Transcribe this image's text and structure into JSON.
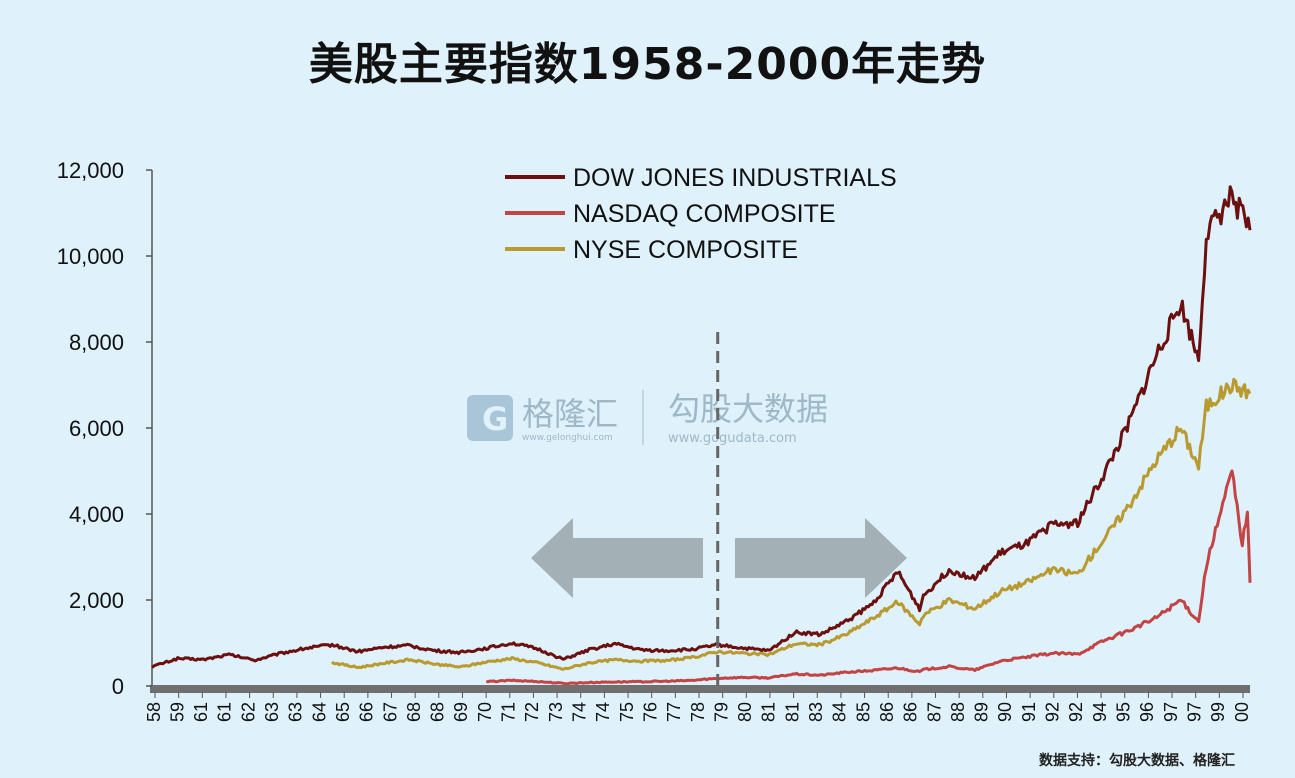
{
  "title": "美股主要指数1958-2000年走势",
  "watermark": {
    "brand1": "格隆汇",
    "brand1_url": "www.gelonghui.com",
    "brand2": "勾股大数据",
    "brand2_url": "www.gogudata.com"
  },
  "source": "数据支持：勾股大数据、格隆汇",
  "chart_data": {
    "type": "line",
    "title": "美股主要指数1958-2000年走势",
    "xlabel": "",
    "ylabel": "",
    "ylim": [
      0,
      12000
    ],
    "xlim": [
      1958,
      2000.7
    ],
    "grid": false,
    "legend_position": "top-center",
    "y_ticks": [
      "12,000",
      "10,000",
      "8,000",
      "6,000",
      "4,000",
      "2,000",
      "0"
    ],
    "y_tick_values": [
      12000,
      10000,
      8000,
      6000,
      4000,
      2000,
      0
    ],
    "x_ticks": [
      "58",
      "59",
      "61",
      "61",
      "62",
      "63",
      "63",
      "64",
      "65",
      "66",
      "67",
      "68",
      "68",
      "69",
      "70",
      "71",
      "72",
      "73",
      "74",
      "74",
      "75",
      "76",
      "77",
      "78",
      "79",
      "80",
      "81",
      "81",
      "83",
      "84",
      "85",
      "86",
      "86",
      "87",
      "88",
      "89",
      "90",
      "91",
      "92",
      "92",
      "94",
      "95",
      "96",
      "97",
      "97",
      "99",
      "00"
    ],
    "annotation": {
      "type": "dashed-vertical-line",
      "x": 1980,
      "arrows": [
        "left",
        "right"
      ]
    },
    "series": [
      {
        "name": "DOW JONES INDUSTRIALS",
        "color": "#6b0f0f",
        "points": [
          [
            1958,
            450
          ],
          [
            1959,
            640
          ],
          [
            1960,
            615
          ],
          [
            1961,
            730
          ],
          [
            1962,
            600
          ],
          [
            1963,
            760
          ],
          [
            1964,
            880
          ],
          [
            1965,
            960
          ],
          [
            1966,
            800
          ],
          [
            1967,
            900
          ],
          [
            1968,
            940
          ],
          [
            1969,
            820
          ],
          [
            1970,
            780
          ],
          [
            1971,
            880
          ],
          [
            1972,
            1000
          ],
          [
            1973,
            860
          ],
          [
            1974,
            620
          ],
          [
            1975,
            840
          ],
          [
            1976,
            980
          ],
          [
            1977,
            840
          ],
          [
            1978,
            820
          ],
          [
            1979,
            850
          ],
          [
            1980,
            960
          ],
          [
            1981,
            880
          ],
          [
            1982,
            820
          ],
          [
            1983,
            1250
          ],
          [
            1984,
            1200
          ],
          [
            1985,
            1500
          ],
          [
            1986,
            1900
          ],
          [
            1987,
            2650
          ],
          [
            1987.85,
            1800
          ],
          [
            1988,
            2100
          ],
          [
            1989,
            2700
          ],
          [
            1990,
            2500
          ],
          [
            1991,
            3100
          ],
          [
            1992,
            3300
          ],
          [
            1993,
            3750
          ],
          [
            1994,
            3800
          ],
          [
            1995,
            4900
          ],
          [
            1996,
            6100
          ],
          [
            1997,
            7600
          ],
          [
            1998,
            8900
          ],
          [
            1998.7,
            7600
          ],
          [
            1999,
            10500
          ],
          [
            2000,
            11400
          ],
          [
            2000.7,
            10600
          ]
        ]
      },
      {
        "name": "NASDAQ COMPOSITE",
        "color": "#c24444",
        "points": [
          [
            1971,
            100
          ],
          [
            1972,
            130
          ],
          [
            1973,
            105
          ],
          [
            1974,
            60
          ],
          [
            1975,
            80
          ],
          [
            1976,
            95
          ],
          [
            1977,
            100
          ],
          [
            1978,
            110
          ],
          [
            1979,
            130
          ],
          [
            1980,
            180
          ],
          [
            1981,
            200
          ],
          [
            1982,
            190
          ],
          [
            1983,
            280
          ],
          [
            1984,
            250
          ],
          [
            1985,
            320
          ],
          [
            1986,
            360
          ],
          [
            1987,
            420
          ],
          [
            1987.85,
            330
          ],
          [
            1988,
            380
          ],
          [
            1989,
            450
          ],
          [
            1990,
            370
          ],
          [
            1991,
            580
          ],
          [
            1992,
            670
          ],
          [
            1993,
            760
          ],
          [
            1994,
            740
          ],
          [
            1995,
            1050
          ],
          [
            1996,
            1290
          ],
          [
            1997,
            1570
          ],
          [
            1998,
            2000
          ],
          [
            1998.7,
            1500
          ],
          [
            1999,
            2800
          ],
          [
            2000,
            5000
          ],
          [
            2000.4,
            3300
          ],
          [
            2000.6,
            4100
          ],
          [
            2000.7,
            2400
          ]
        ]
      },
      {
        "name": "NYSE COMPOSITE",
        "color": "#b89a30",
        "points": [
          [
            1965,
            550
          ],
          [
            1966,
            430
          ],
          [
            1967,
            530
          ],
          [
            1968,
            610
          ],
          [
            1969,
            510
          ],
          [
            1970,
            440
          ],
          [
            1971,
            560
          ],
          [
            1972,
            640
          ],
          [
            1973,
            540
          ],
          [
            1974,
            390
          ],
          [
            1975,
            540
          ],
          [
            1976,
            610
          ],
          [
            1977,
            580
          ],
          [
            1978,
            590
          ],
          [
            1979,
            660
          ],
          [
            1980,
            800
          ],
          [
            1981,
            760
          ],
          [
            1982,
            730
          ],
          [
            1983,
            980
          ],
          [
            1984,
            960
          ],
          [
            1985,
            1200
          ],
          [
            1986,
            1560
          ],
          [
            1987,
            1950
          ],
          [
            1987.85,
            1450
          ],
          [
            1988,
            1650
          ],
          [
            1989,
            2000
          ],
          [
            1990,
            1800
          ],
          [
            1991,
            2200
          ],
          [
            1992,
            2400
          ],
          [
            1993,
            2700
          ],
          [
            1994,
            2600
          ],
          [
            1995,
            3400
          ],
          [
            1996,
            4200
          ],
          [
            1997,
            5200
          ],
          [
            1998,
            6000
          ],
          [
            1998.7,
            5100
          ],
          [
            1999,
            6500
          ],
          [
            2000,
            7000
          ],
          [
            2000.7,
            6800
          ]
        ]
      }
    ]
  }
}
